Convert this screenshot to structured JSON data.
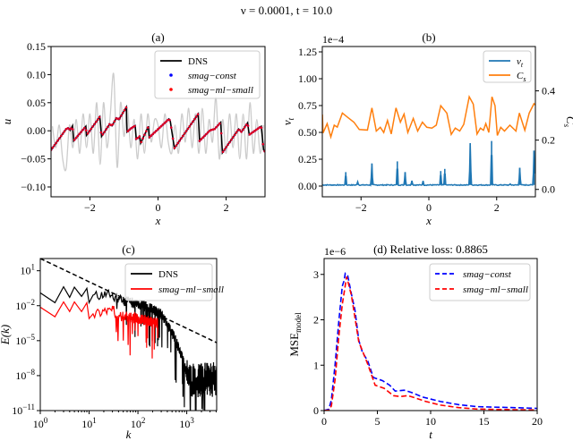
{
  "figure_title": "ν = 0.0001, t = 10.0",
  "chart_data": [
    {
      "id": "a",
      "type": "line",
      "title": "(a)",
      "xlabel": "x",
      "ylabel": "u",
      "xlim": [
        -3.1416,
        3.1416
      ],
      "ylim": [
        -0.1175,
        0.15
      ],
      "xticks": [
        -2,
        0,
        2
      ],
      "xtick_labels": [
        "−2",
        "0",
        "2"
      ],
      "yticks": [
        -0.1,
        -0.05,
        0.0,
        0.05,
        0.1,
        0.15
      ],
      "ytick_labels": [
        "−0.10",
        "−0.05",
        "0.00",
        "0.05",
        "0.10",
        "0.15"
      ],
      "legend": {
        "placement": "upper-right",
        "entries": [
          "DNS",
          "smag−const",
          "smag−ml−small"
        ]
      },
      "series": [
        {
          "name": "DNS",
          "style": "line",
          "color": "#000000",
          "x": [
            -3.14,
            -2.7,
            -2.63,
            -2.58,
            -2.51,
            -2.48,
            -2.12,
            -2.1,
            -1.71,
            -1.66,
            -1.42,
            -1.35,
            -1.22,
            -1.15,
            -0.93,
            -0.91,
            -0.8,
            -0.67,
            -0.64,
            -0.54,
            -0.51,
            -0.28,
            -0.26,
            0.32,
            0.36,
            0.48,
            1.18,
            1.22,
            1.53,
            1.66,
            1.84,
            1.89,
            2.37,
            2.45,
            2.63,
            2.68,
            3.03,
            3.1,
            3.14
          ],
          "y": [
            -0.034,
            0.003,
            0.005,
            0.001,
            0.009,
            -0.018,
            0.008,
            -0.008,
            0.025,
            -0.01,
            0.012,
            0.009,
            0.023,
            0.02,
            0.042,
            -0.002,
            0.004,
            0.009,
            -0.015,
            -0.01,
            -0.022,
            0.008,
            -0.012,
            0.021,
            0.017,
            -0.031,
            0.03,
            -0.018,
            0.001,
            0.003,
            0.015,
            -0.039,
            0.003,
            -0.002,
            0.014,
            -0.007,
            0.008,
            -0.034,
            -0.037
          ]
        },
        {
          "name": "smag−const",
          "style": "markers",
          "color": "#0000ff",
          "follows": "DNS"
        },
        {
          "name": "smag−ml−small",
          "style": "markers",
          "color": "#ff0000",
          "follows": "DNS"
        },
        {
          "style": "line",
          "color": "#cccccc",
          "x": [
            -3.1,
            -3.0,
            -2.9,
            -2.8,
            -2.7,
            -2.6,
            -2.5,
            -2.4,
            -2.3,
            -2.2,
            -2.1,
            -2.0,
            -1.9,
            -1.8,
            -1.7,
            -1.6,
            -1.5,
            -1.4,
            -1.3,
            -1.2,
            -1.1,
            -1.0,
            -0.9,
            -0.8,
            -0.7,
            -0.6,
            -0.5,
            -0.4,
            -0.3,
            -0.2,
            -0.1,
            0.0,
            0.1,
            0.2,
            0.3,
            0.4,
            0.5,
            0.6,
            0.7,
            0.8,
            0.9,
            1.0,
            1.1,
            1.2,
            1.3,
            1.4,
            1.5,
            1.6,
            1.7,
            1.8,
            1.9,
            2.0,
            2.1,
            2.2,
            2.3,
            2.4,
            2.5,
            2.6,
            2.7,
            2.8,
            2.9,
            3.0,
            3.1
          ],
          "y": [
            0.008,
            -0.03,
            0.01,
            -0.05,
            -0.068,
            0.01,
            -0.03,
            0.02,
            -0.04,
            0.03,
            -0.03,
            0.03,
            -0.04,
            0.05,
            -0.06,
            0.05,
            -0.03,
            0.03,
            0.1,
            -0.065,
            0.05,
            -0.01,
            0.04,
            -0.03,
            0.02,
            -0.05,
            0.03,
            -0.04,
            0.03,
            -0.02,
            0.02,
            0.01,
            -0.03,
            0.03,
            -0.02,
            -0.04,
            0.01,
            -0.04,
            0.03,
            -0.02,
            0.04,
            -0.03,
            0.03,
            -0.04,
            0.04,
            -0.04,
            0.02,
            -0.02,
            0.06,
            -0.05,
            0.02,
            -0.04,
            0.03,
            -0.03,
            0.03,
            -0.05,
            0.03,
            -0.05,
            0.05,
            -0.04,
            0.02,
            -0.04,
            0.01
          ]
        }
      ]
    },
    {
      "id": "b",
      "type": "line",
      "title": "(b)",
      "xlabel": "x",
      "ylabel": "ν_t",
      "ylabel_right": "C_s",
      "offset_text": "1e−4",
      "xlim": [
        -3.1416,
        3.1416
      ],
      "ylim": [
        -0.1,
        1.3
      ],
      "ylim_right": [
        -0.03,
        0.58
      ],
      "xticks": [
        -2,
        0,
        2
      ],
      "xtick_labels": [
        "−2",
        "0",
        "2"
      ],
      "yticks": [
        0,
        0.25,
        0.5,
        0.75,
        1.0,
        1.25
      ],
      "ytick_labels": [
        "0.00",
        "0.25",
        "0.50",
        "0.75",
        "1.00",
        "1.25"
      ],
      "yticks_right": [
        0,
        0.2,
        0.4
      ],
      "ytick_labels_right": [
        "0.0",
        "0.2",
        "0.4"
      ],
      "legend": {
        "placement": "upper-right",
        "entries": [
          "ν_t",
          "C_s"
        ]
      },
      "series": [
        {
          "name": "ν_t",
          "axis": "left",
          "color": "#1f77b4",
          "baseline": 0.01,
          "spikes_x": [
            -2.45,
            -2.1,
            -1.68,
            -0.93,
            -0.7,
            -0.5,
            -0.17,
            0.35,
            0.47,
            1.22,
            1.85,
            2.4,
            2.68,
            3.1
          ],
          "spikes_y": [
            0.13,
            0.04,
            0.21,
            0.23,
            0.13,
            0.05,
            0.05,
            0.14,
            0.16,
            0.4,
            0.42,
            0.02,
            0.17,
            0.33
          ]
        },
        {
          "name": "C_s",
          "axis": "right",
          "color": "#ff7f0e",
          "x": [
            -3.14,
            -3.12,
            -3.0,
            -2.89,
            -2.79,
            -2.7,
            -2.55,
            -2.39,
            -2.21,
            -2.05,
            -1.81,
            -1.68,
            -1.55,
            -1.43,
            -1.33,
            -1.22,
            -1.11,
            -0.97,
            -0.84,
            -0.73,
            -0.62,
            -0.46,
            -0.33,
            -0.19,
            -0.06,
            0.09,
            0.22,
            0.35,
            0.53,
            0.66,
            0.78,
            0.91,
            1.03,
            1.19,
            1.31,
            1.42,
            1.52,
            1.61,
            1.68,
            1.77,
            1.86,
            1.95,
            2.02,
            2.12,
            2.23,
            2.39,
            2.57,
            2.67,
            2.83,
            2.96,
            3.1,
            3.14
          ],
          "y": [
            0.304,
            0.229,
            0.267,
            0.213,
            0.261,
            0.253,
            0.31,
            0.292,
            0.273,
            0.243,
            0.241,
            0.331,
            0.237,
            0.252,
            0.231,
            0.28,
            0.225,
            0.331,
            0.273,
            0.306,
            0.231,
            0.288,
            0.237,
            0.273,
            0.252,
            0.249,
            0.261,
            0.34,
            0.31,
            0.223,
            0.249,
            0.237,
            0.264,
            0.376,
            0.346,
            0.225,
            0.249,
            0.24,
            0.267,
            0.231,
            0.376,
            0.34,
            0.219,
            0.252,
            0.237,
            0.261,
            0.237,
            0.31,
            0.24,
            0.31,
            0.348,
            0.343
          ]
        }
      ]
    },
    {
      "id": "c",
      "type": "line",
      "title": "(c)",
      "xlabel": "k",
      "ylabel": "E(k)",
      "xscale": "log",
      "yscale": "log",
      "xlim": [
        1,
        4096
      ],
      "ylim": [
        1e-11,
        112
      ],
      "xtick_exponents": [
        0,
        1,
        2,
        3
      ],
      "ytick_exponents": [
        1,
        -2,
        -5,
        -8,
        -11
      ],
      "legend": {
        "placement": "upper-right",
        "entries": [
          "DNS",
          "smag−ml−small"
        ]
      },
      "series": [
        {
          "name": "DNS",
          "color": "#000000",
          "k": [
            1,
            2,
            3,
            4,
            5,
            7,
            9,
            10,
            12,
            20,
            30,
            50,
            100,
            200,
            300,
            500,
            700,
            900,
            1000,
            1200,
            4096
          ],
          "log10_E": [
            -0.9,
            -1.74,
            -0.38,
            -1.28,
            -0.41,
            -1.2,
            -0.51,
            -1.74,
            -1.1,
            -0.95,
            -1.0,
            -1.5,
            -1.74,
            -2.2,
            -2.64,
            -4.2,
            -5.6,
            -7.0,
            -7.8,
            -8.1,
            -8.0
          ]
        },
        {
          "name": "smag−ml−small",
          "color": "#ff0000",
          "k": [
            1,
            2,
            3,
            4,
            5,
            7,
            9,
            10,
            12,
            20,
            30,
            50,
            100,
            256
          ],
          "log10_E": [
            -2.13,
            -2.95,
            -1.67,
            -2.5,
            -1.67,
            -2.5,
            -1.74,
            -3.1,
            -2.7,
            -2.3,
            -2.3,
            -2.9,
            -3.0,
            -3.4
          ]
        },
        {
          "style": "dashed",
          "color": "#000000",
          "k": [
            1,
            4096
          ],
          "log10_E": [
            2.05,
            -5.17
          ]
        }
      ]
    },
    {
      "id": "d",
      "type": "line",
      "title": "(d) Relative loss: 0.8865",
      "xlabel": "t",
      "ylabel": "MSE",
      "ylabel_sub": "model",
      "offset_text": "1e−6",
      "xlim": [
        0,
        20
      ],
      "ylim": [
        0,
        3.35
      ],
      "xticks": [
        0,
        5,
        10,
        15,
        20
      ],
      "xtick_labels": [
        "0",
        "5",
        "10",
        "15",
        "20"
      ],
      "yticks": [
        0,
        1,
        2,
        3
      ],
      "ytick_labels": [
        "0",
        "1",
        "2",
        "3"
      ],
      "legend": {
        "placement": "upper-right",
        "entries": [
          "smag−const",
          "smag−ml−small"
        ]
      },
      "series": [
        {
          "name": "smag−const",
          "style": "dashed",
          "color": "#0000ff",
          "x": [
            0,
            0.44,
            0.68,
            1.03,
            1.37,
            1.71,
            1.88,
            1.98,
            2.22,
            2.56,
            2.9,
            3.25,
            3.59,
            4.1,
            4.62,
            5.47,
            6.15,
            6.67,
            7.52,
            8.2,
            9.23,
            10.94,
            12.65,
            14.36,
            17.8,
            20
          ],
          "y": [
            0,
            0.03,
            0.23,
            1.02,
            1.94,
            2.74,
            2.87,
            3.02,
            2.97,
            2.57,
            2.21,
            1.55,
            1.29,
            1.09,
            0.73,
            0.66,
            0.56,
            0.43,
            0.45,
            0.4,
            0.3,
            0.2,
            0.13,
            0.086,
            0.066,
            0.05
          ]
        },
        {
          "name": "smag−ml−small",
          "style": "dashed",
          "color": "#ff0000",
          "x": [
            0,
            0.44,
            0.68,
            1.03,
            1.37,
            1.71,
            2.12,
            2.56,
            3.25,
            4.1,
            4.79,
            5.64,
            6.5,
            7.18,
            7.86,
            8.55,
            9.57,
            10.94,
            12.65,
            14.36,
            17.8,
            20
          ],
          "y": [
            0,
            0.01,
            0.1,
            0.69,
            1.61,
            2.34,
            2.95,
            2.54,
            1.52,
            1.02,
            0.56,
            0.49,
            0.33,
            0.31,
            0.33,
            0.28,
            0.2,
            0.12,
            0.066,
            0.033,
            0.02,
            0.013
          ]
        }
      ]
    }
  ]
}
